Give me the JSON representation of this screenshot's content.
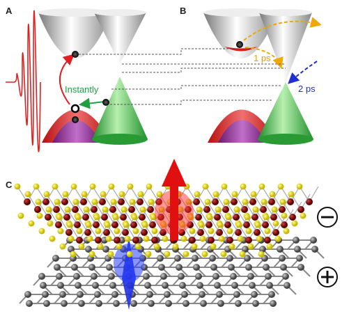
{
  "panels": {
    "a": {
      "label": "A",
      "annotation": "Instantly"
    },
    "b": {
      "label": "B",
      "annotations": [
        "1 ps",
        "2 ps"
      ]
    },
    "c": {
      "label": "C"
    }
  }
}
